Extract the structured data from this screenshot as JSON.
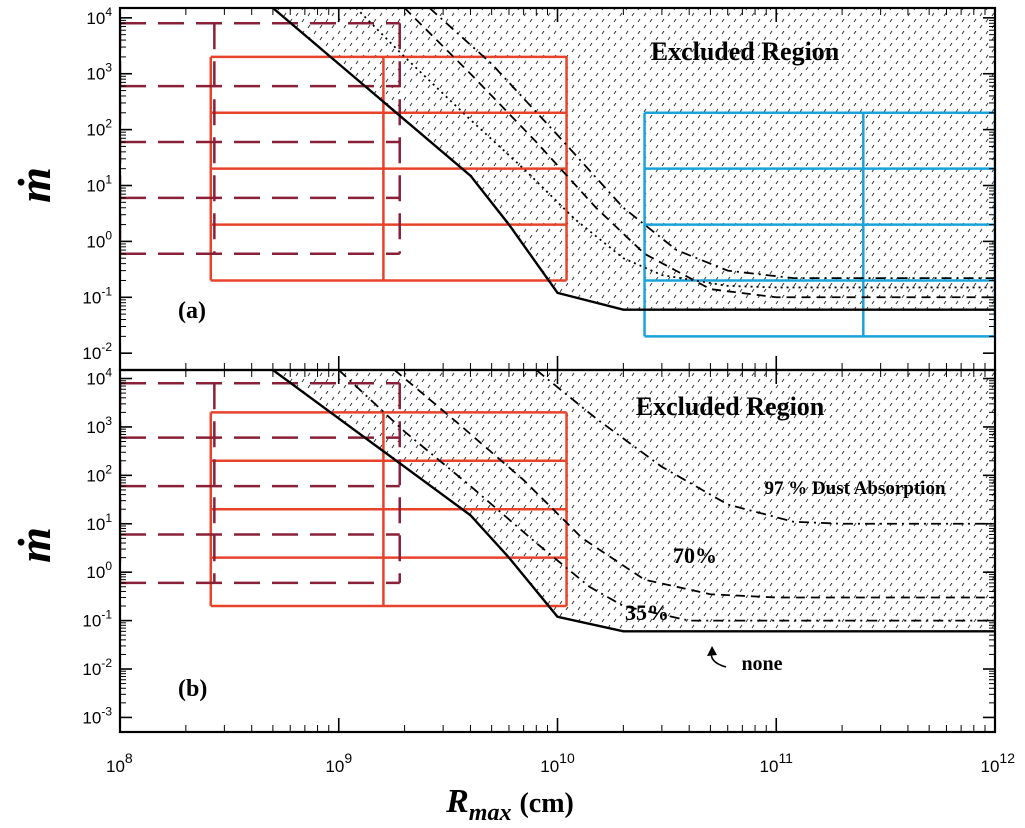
{
  "chart_data": [
    {
      "type": "line",
      "panel_label": "(a)",
      "xlabel": "R_max (cm)",
      "ylabel": "ṁ",
      "x_scale": "log",
      "y_scale": "log",
      "xlim": [
        100000000.0,
        1000000000000.0
      ],
      "ylim": [
        0.005,
        15000
      ],
      "x_ticks": [
        "10^8",
        "10^9",
        "10^10",
        "10^11",
        "10^12"
      ],
      "y_ticks": [
        "10^-2",
        "10^-1",
        "10^0",
        "10^1",
        "10^2",
        "10^3",
        "10^4"
      ],
      "annotations": [
        "Excluded Region"
      ],
      "series": [
        {
          "style": "solid",
          "x": [
            500000000.0,
            1000000000.0,
            2000000000.0,
            4000000000.0,
            6000000000.0,
            10000000000.0,
            20000000000.0,
            100000000000.0,
            1000000000000.0
          ],
          "y": [
            15000,
            1500,
            150,
            15,
            2.0,
            0.12,
            0.06,
            0.06,
            0.06
          ]
        },
        {
          "style": "dotted",
          "x": [
            1200000000.0,
            2000000000.0,
            4000000000.0,
            7000000000.0,
            12000000000.0,
            20000000000.0,
            30000000000.0,
            60000000000.0,
            100000000000.0,
            1000000000000.0
          ],
          "y": [
            15000,
            2000,
            150,
            20,
            2.5,
            0.5,
            0.25,
            0.16,
            0.15,
            0.15
          ]
        },
        {
          "style": "dashed",
          "x": [
            2000000000.0,
            4000000000.0,
            8000000000.0,
            15000000000.0,
            25000000000.0,
            50000000000.0,
            100000000000.0,
            1000000000000.0
          ],
          "y": [
            15000,
            1000,
            60,
            4.0,
            0.6,
            0.14,
            0.1,
            0.1
          ]
        },
        {
          "style": "dash-dot",
          "x": [
            2600000000.0,
            5000000000.0,
            10000000000.0,
            20000000000.0,
            35000000000.0,
            60000000000.0,
            120000000000.0,
            1000000000000.0
          ],
          "y": [
            15000,
            1500,
            80,
            4.0,
            0.7,
            0.3,
            0.22,
            0.22
          ]
        }
      ],
      "boxes": [
        {
          "color": "#e8432a",
          "x_range": [
            260000000.0,
            11000000000.0
          ],
          "x_divider": 1600000000.0,
          "y_lines": [
            2000,
            200,
            20,
            2,
            0.2
          ]
        },
        {
          "color": "#1aa3d9",
          "x_range": [
            25000000000.0,
            1000000000000.0
          ],
          "x_divider": 250000000000.0,
          "y_lines": [
            200,
            20,
            2,
            0.2,
            0.02
          ]
        },
        {
          "color": "#8a2038",
          "style": "dashed",
          "x_range": [
            100000000.0,
            1900000000.0
          ],
          "x_divider": 270000000.0,
          "y_lines": [
            8000,
            600,
            60,
            6,
            0.6
          ]
        }
      ]
    },
    {
      "type": "line",
      "panel_label": "(b)",
      "xlabel": "R_max (cm)",
      "ylabel": "ṁ",
      "x_scale": "log",
      "y_scale": "log",
      "xlim": [
        100000000.0,
        1000000000000.0
      ],
      "ylim": [
        0.0005,
        15000
      ],
      "x_ticks": [
        "10^8",
        "10^9",
        "10^10",
        "10^11",
        "10^12"
      ],
      "y_ticks": [
        "10^-3",
        "10^-2",
        "10^-1",
        "10^0",
        "10^1",
        "10^2",
        "10^3",
        "10^4"
      ],
      "annotations": [
        "Excluded Region",
        "97 % Dust Absorption",
        "70%",
        "35%",
        "none"
      ],
      "series": [
        {
          "name": "none",
          "style": "solid",
          "x": [
            500000000.0,
            1000000000.0,
            2000000000.0,
            4000000000.0,
            6000000000.0,
            10000000000.0,
            20000000000.0,
            100000000000.0,
            1000000000000.0
          ],
          "y": [
            15000,
            1500,
            150,
            15,
            2.0,
            0.12,
            0.06,
            0.06,
            0.06
          ]
        },
        {
          "name": "35%",
          "style": "dash-dot",
          "x": [
            1000000000.0,
            2000000000.0,
            4000000000.0,
            8000000000.0,
            14000000000.0,
            20000000000.0,
            40000000000.0,
            100000000000.0,
            1000000000000.0
          ],
          "y": [
            15000,
            800,
            60,
            4.0,
            0.5,
            0.2,
            0.1,
            0.1,
            0.1
          ]
        },
        {
          "name": "70%",
          "style": "dashed",
          "x": [
            1800000000.0,
            3500000000.0,
            7000000000.0,
            13000000000.0,
            25000000000.0,
            50000000000.0,
            100000000000.0,
            1000000000000.0
          ],
          "y": [
            15000,
            1200,
            80,
            5.0,
            0.7,
            0.35,
            0.3,
            0.3
          ]
        },
        {
          "name": "97 % Dust Absorption",
          "style": "dash-dot",
          "x": [
            8000000000.0,
            15000000000.0,
            30000000000.0,
            60000000000.0,
            120000000000.0,
            200000000000.0,
            1000000000000.0
          ],
          "y": [
            15000,
            1500,
            150,
            25,
            11,
            10,
            10
          ]
        }
      ],
      "boxes": [
        {
          "color": "#e8432a",
          "x_range": [
            260000000.0,
            11000000000.0
          ],
          "x_divider": 1600000000.0,
          "y_lines": [
            2000,
            200,
            20,
            2,
            0.2
          ]
        },
        {
          "color": "#8a2038",
          "style": "dashed",
          "x_range": [
            100000000.0,
            1900000000.0
          ],
          "x_divider": 270000000.0,
          "y_lines": [
            8000,
            600,
            60,
            6,
            0.6
          ]
        }
      ]
    }
  ],
  "labels": {
    "ylabel_text": "ṁ",
    "xlabel_main": "R",
    "xlabel_sub": "max",
    "xlabel_unit": "(cm)",
    "tick_base": "10"
  }
}
